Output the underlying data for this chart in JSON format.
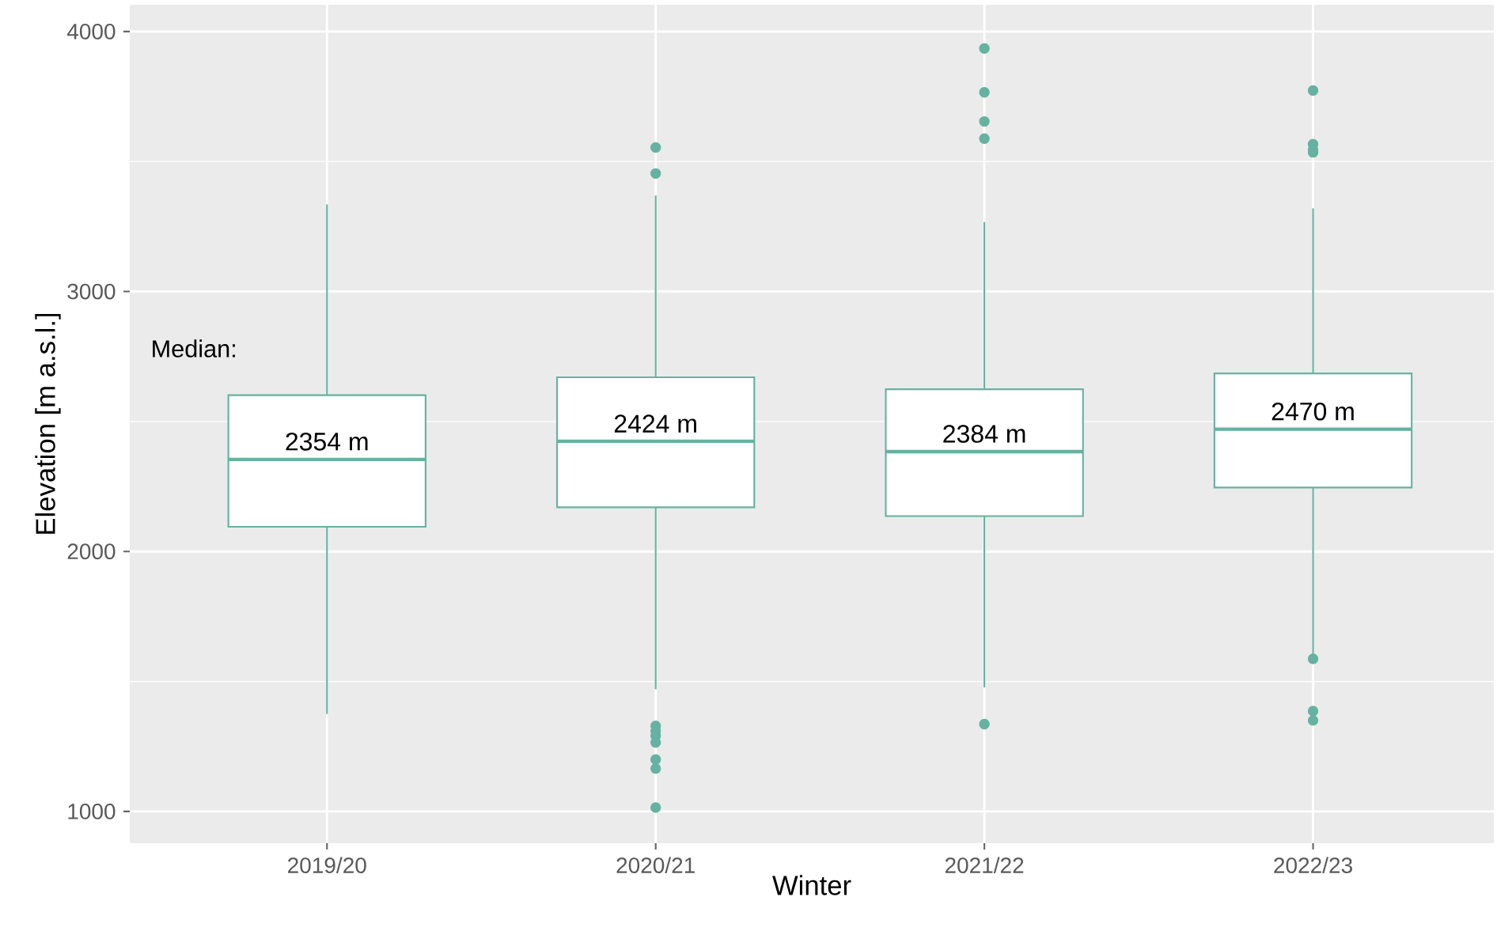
{
  "chart_data": {
    "type": "box",
    "xlabel": "Winter",
    "ylabel": "Elevation [m a.s.l.]",
    "categories": [
      "2019/20",
      "2020/21",
      "2021/22",
      "2022/23"
    ],
    "color": "#66b2a0",
    "boxes": [
      {
        "low": 1375,
        "q1": 2095,
        "median": 2354,
        "q3": 2601,
        "high": 3335
      },
      {
        "low": 1470,
        "q1": 2170,
        "median": 2424,
        "q3": 2670,
        "high": 3369,
        "outliers": [
          3554,
          3454,
          1329,
          1310,
          1290,
          1265,
          1200,
          1165,
          1015
        ]
      },
      {
        "low": 1477,
        "q1": 2136,
        "median": 2384,
        "q3": 2624,
        "high": 3267,
        "outliers": [
          3935,
          3766,
          3654,
          3588,
          1336
        ]
      },
      {
        "low": 1600,
        "q1": 2246,
        "median": 2470,
        "q3": 2685,
        "high": 3320,
        "outliers": [
          3773,
          3567,
          3545,
          3535,
          1587,
          1386,
          1350
        ]
      }
    ],
    "ylim": [
      878,
      4103
    ],
    "yticks": [
      1000,
      2000,
      3000,
      4000
    ],
    "grid": true,
    "annotations": [
      "Median:",
      {
        "text": "2354 m",
        "x": "2019/20",
        "y": 2354
      },
      {
        "text": "2424 m",
        "x": "2020/21",
        "y": 2424
      },
      {
        "text": "2384 m",
        "x": "2021/22",
        "y": 2384
      },
      {
        "text": "2470 m",
        "x": "2022/23",
        "y": 2470
      }
    ]
  }
}
